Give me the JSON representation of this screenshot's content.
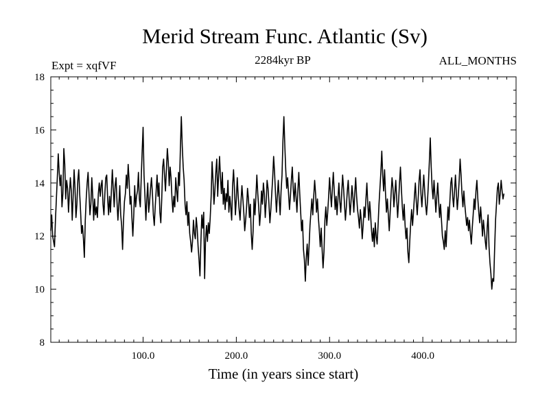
{
  "chart_data": {
    "type": "line",
    "title": "Merid Stream Func. Atlantic (Sv)",
    "subtitle_left": "Expt = xqfVF",
    "subtitle_center": "2284kyr BP",
    "subtitle_right": "ALL_MONTHS",
    "xlabel": "Time (in years since start)",
    "ylabel": "",
    "xlim": [
      1,
      500
    ],
    "ylim": [
      8,
      18
    ],
    "x_ticks": [
      100,
      200,
      300,
      400
    ],
    "x_tick_labels": [
      "100.0",
      "200.0",
      "300.0",
      "400.0"
    ],
    "y_ticks": [
      8,
      10,
      12,
      14,
      16,
      18
    ],
    "y_tick_labels": [
      "8",
      "10",
      "12",
      "14",
      "16",
      "18"
    ],
    "grid": false,
    "series": [
      {
        "name": "Merid Stream Func. Atlantic",
        "color": "#000000",
        "x_start": 1,
        "x_step": 1,
        "values": [
          12.2,
          12.8,
          12.0,
          11.8,
          11.6,
          12.6,
          13.4,
          14.2,
          15.1,
          14.4,
          13.9,
          14.3,
          13.1,
          13.6,
          15.3,
          14.7,
          13.4,
          14.1,
          13.8,
          12.9,
          13.6,
          14.2,
          13.7,
          12.6,
          13.5,
          14.5,
          13.8,
          12.7,
          13.2,
          14.1,
          14.5,
          13.6,
          12.9,
          12.1,
          12.4,
          11.9,
          11.2,
          12.6,
          13.4,
          14.0,
          14.4,
          13.6,
          12.8,
          13.2,
          14.2,
          13.5,
          12.6,
          13.4,
          12.8,
          13.1,
          12.7,
          13.6,
          14.0,
          13.5,
          13.9,
          14.1,
          13.2,
          12.8,
          13.6,
          14.2,
          14.3,
          13.4,
          12.8,
          13.5,
          12.9,
          13.7,
          14.5,
          13.8,
          13.1,
          13.9,
          14.2,
          13.3,
          12.6,
          13.2,
          13.9,
          12.8,
          12.4,
          11.5,
          12.6,
          13.3,
          13.6,
          14.3,
          13.8,
          14.7,
          14.1,
          13.2,
          13.5,
          12.7,
          12.0,
          12.8,
          13.9,
          13.1,
          13.5,
          13.7,
          14.4,
          13.4,
          13.1,
          14.2,
          15.2,
          16.1,
          14.3,
          13.5,
          12.6,
          13.4,
          14.0,
          12.9,
          13.3,
          13.8,
          14.2,
          13.6,
          12.8,
          12.4,
          13.1,
          13.7,
          14.3,
          13.5,
          14.0,
          12.9,
          12.5,
          13.4,
          14.6,
          14.9,
          14.3,
          13.7,
          14.5,
          15.3,
          14.8,
          13.9,
          14.6,
          14.2,
          13.4,
          12.9,
          13.5,
          13.1,
          14.2,
          13.7,
          13.3,
          14.4,
          13.9,
          15.3,
          16.5,
          15.4,
          14.6,
          14.1,
          13.2,
          12.8,
          13.3,
          12.4,
          12.9,
          12.1,
          11.8,
          11.4,
          11.8,
          12.6,
          12.1,
          11.9,
          12.7,
          12.3,
          11.6,
          11.1,
          10.5,
          11.8,
          12.8,
          12.3,
          12.9,
          10.4,
          11.9,
          12.4,
          11.8,
          12.5,
          12.1,
          12.7,
          13.5,
          14.8,
          14.1,
          13.2,
          13.7,
          14.4,
          14.9,
          13.5,
          14.3,
          15.0,
          14.2,
          13.6,
          14.4,
          13.2,
          13.8,
          13.0,
          13.6,
          13.3,
          14.1,
          12.9,
          13.5,
          13.1,
          12.6,
          13.9,
          14.5,
          13.8,
          12.8,
          13.4,
          14.2,
          13.5,
          13.0,
          12.6,
          13.3,
          13.9,
          13.4,
          12.9,
          12.2,
          12.6,
          13.1,
          13.8,
          13.4,
          12.7,
          13.2,
          12.1,
          11.5,
          12.2,
          13.4,
          12.8,
          13.5,
          14.3,
          13.6,
          13.1,
          12.4,
          12.9,
          13.7,
          13.2,
          14.0,
          13.6,
          12.7,
          13.3,
          14.1,
          13.8,
          13.2,
          12.5,
          13.0,
          13.6,
          14.2,
          15.0,
          14.4,
          13.6,
          12.9,
          13.5,
          14.1,
          13.4,
          12.8,
          13.7,
          14.3,
          15.6,
          16.5,
          15.4,
          14.5,
          13.8,
          14.2,
          13.6,
          13.0,
          13.5,
          14.1,
          14.6,
          13.8,
          13.3,
          14.0,
          13.5,
          12.9,
          13.7,
          14.4,
          13.6,
          12.9,
          12.2,
          12.6,
          11.5,
          11.1,
          10.3,
          11.2,
          11.7,
          10.9,
          11.6,
          12.4,
          12.9,
          13.4,
          12.8,
          13.5,
          14.1,
          13.6,
          12.9,
          13.4,
          12.7,
          12.2,
          11.6,
          12.3,
          11.5,
          10.8,
          11.4,
          12.6,
          13.1,
          12.4,
          12.9,
          13.5,
          14.2,
          13.6,
          13.1,
          13.8,
          14.4,
          13.7,
          13.0,
          13.5,
          12.8,
          13.4,
          14.0,
          13.3,
          12.9,
          13.6,
          14.3,
          13.8,
          13.2,
          12.6,
          13.1,
          13.7,
          14.1,
          13.4,
          12.8,
          13.3,
          13.9,
          13.5,
          12.9,
          13.6,
          14.2,
          13.5,
          13.0,
          12.7,
          12.3,
          13.0,
          12.6,
          11.9,
          12.4,
          13.1,
          12.7,
          13.4,
          14.0,
          13.2,
          12.6,
          13.3,
          12.8,
          12.2,
          11.8,
          12.3,
          11.6,
          12.5,
          12.0,
          11.7,
          12.4,
          13.2,
          13.8,
          14.4,
          15.2,
          14.3,
          13.7,
          14.5,
          13.6,
          12.9,
          13.4,
          12.8,
          12.2,
          12.9,
          13.6,
          14.2,
          13.8,
          13.1,
          13.6,
          14.1,
          13.4,
          12.7,
          13.3,
          14.0,
          14.6,
          13.8,
          13.1,
          12.6,
          13.2,
          12.4,
          11.9,
          12.3,
          11.4,
          11.0,
          11.8,
          12.5,
          13.0,
          12.4,
          12.9,
          13.5,
          14.0,
          13.3,
          12.8,
          13.4,
          14.1,
          14.5,
          13.6,
          13.1,
          13.7,
          14.3,
          13.7,
          13.2,
          12.8,
          13.3,
          14.0,
          14.8,
          15.7,
          14.6,
          13.8,
          13.4,
          14.1,
          13.5,
          12.9,
          13.5,
          14.0,
          13.3,
          12.7,
          13.2,
          12.6,
          12.0,
          11.8,
          11.5,
          12.2,
          11.6,
          12.4,
          13.1,
          12.6,
          13.3,
          14.0,
          14.2,
          13.5,
          13.1,
          13.7,
          14.3,
          13.6,
          13.0,
          13.5,
          14.1,
          14.9,
          14.3,
          13.6,
          13.1,
          13.7,
          13.2,
          12.8,
          12.4,
          12.7,
          12.2,
          12.6,
          12.1,
          11.7,
          12.3,
          12.8,
          13.4,
          13.0,
          13.7,
          14.1,
          13.4,
          12.9,
          12.5,
          13.1,
          12.6,
          12.0,
          12.6,
          12.2,
          11.8,
          11.5,
          12.3,
          12.8,
          11.6,
          11.0,
          10.6,
          10.0,
          10.4,
          10.3,
          11.5,
          12.6,
          13.2,
          13.8,
          14.0,
          13.2,
          13.6,
          14.1,
          13.7,
          13.4,
          13.6
        ]
      }
    ]
  }
}
